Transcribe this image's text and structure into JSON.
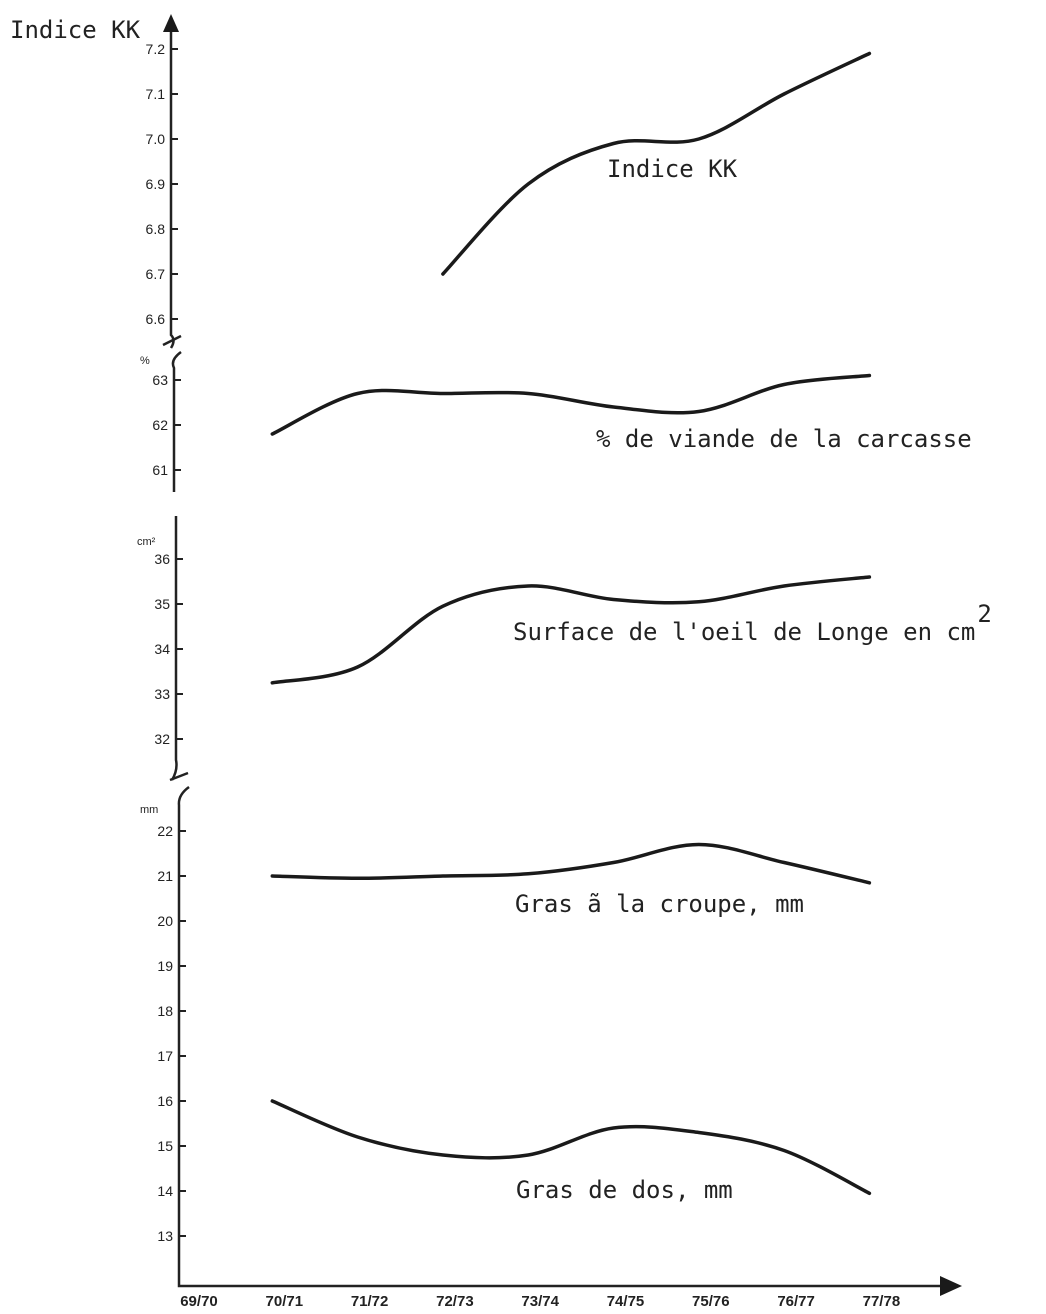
{
  "chart_data": {
    "type": "line",
    "ylabel": "Indice KK",
    "categories": [
      "69/70",
      "70/71",
      "71/72",
      "72/73",
      "73/74",
      "74/75",
      "75/76",
      "76/77",
      "77/78"
    ],
    "panels": [
      {
        "id": "kk",
        "unit": "",
        "ticks": [
          "6.6",
          "6.7",
          "6.8",
          "6.9",
          "7.0",
          "7.1",
          "7.2"
        ],
        "ylim": [
          6.6,
          7.2
        ],
        "series": [
          {
            "name": "Indice KK",
            "values": [
              null,
              null,
              null,
              6.7,
              6.9,
              6.99,
              7.0,
              7.1,
              7.19
            ]
          }
        ]
      },
      {
        "id": "viande",
        "unit": "%",
        "ticks": [
          "61",
          "62",
          "63"
        ],
        "ylim": [
          61,
          63
        ],
        "series": [
          {
            "name": "% de viande de la carcasse",
            "values": [
              null,
              61.8,
              62.7,
              62.7,
              62.7,
              62.4,
              62.3,
              62.9,
              63.1
            ]
          }
        ]
      },
      {
        "id": "surface",
        "unit": "cm²",
        "ticks": [
          "32",
          "33",
          "34",
          "35",
          "36"
        ],
        "ylim": [
          32,
          36
        ],
        "series": [
          {
            "name": "Surface de l'oeil de Longe en cm",
            "superscript": "2",
            "values": [
              null,
              33.25,
              33.6,
              34.95,
              35.4,
              35.1,
              35.05,
              35.4,
              35.6
            ]
          }
        ]
      },
      {
        "id": "mm",
        "unit": "mm",
        "ticks": [
          "13",
          "14",
          "15",
          "16",
          "17",
          "18",
          "19",
          "20",
          "21",
          "22"
        ],
        "ylim": [
          13,
          22
        ],
        "series": [
          {
            "name": "Gras ã la croupe, mm",
            "values": [
              null,
              21.0,
              20.95,
              21.0,
              21.05,
              21.3,
              21.7,
              21.3,
              20.85
            ]
          },
          {
            "name": "Gras de dos, mm",
            "values": [
              null,
              16.0,
              15.2,
              14.8,
              14.8,
              15.4,
              15.3,
              14.9,
              13.95
            ]
          }
        ]
      }
    ]
  }
}
